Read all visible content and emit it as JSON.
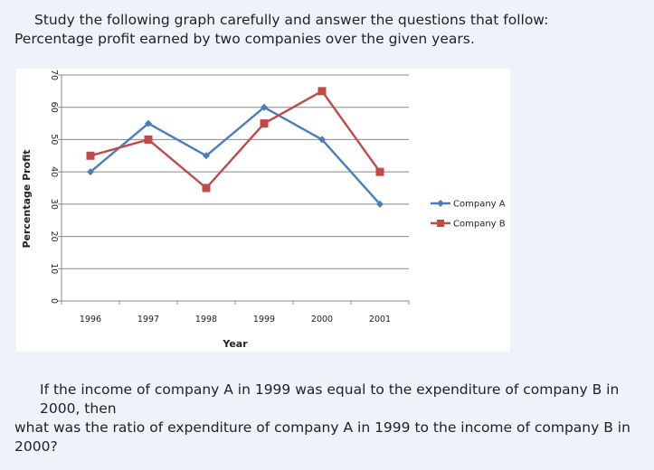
{
  "intro": {
    "line1": "Study the following graph carefully and answer the questions that follow:",
    "line2": "Percentage profit earned by two companies over the given years."
  },
  "question": {
    "line1": "If the income of company A in 1999 was equal to the expenditure of company B in 2000, then",
    "line2": "what was the ratio of expenditure of company A in 1999 to the income of company B in 2000?"
  },
  "chart_data": {
    "type": "line",
    "title": "",
    "xlabel": "Year",
    "ylabel": "Percentage Profit",
    "categories": [
      "1996",
      "1997",
      "1998",
      "1999",
      "2000",
      "2001"
    ],
    "ylim": [
      0,
      70
    ],
    "yticks": [
      0,
      10,
      20,
      30,
      40,
      50,
      60,
      70
    ],
    "grid": true,
    "legend_position": "right",
    "series": [
      {
        "name": "Company A",
        "values": [
          40,
          55,
          45,
          60,
          50,
          30
        ],
        "color": "#4a7ebb",
        "marker": "diamond"
      },
      {
        "name": "Company B",
        "values": [
          45,
          50,
          35,
          55,
          65,
          40
        ],
        "color": "#be4b48",
        "marker": "square"
      }
    ]
  }
}
